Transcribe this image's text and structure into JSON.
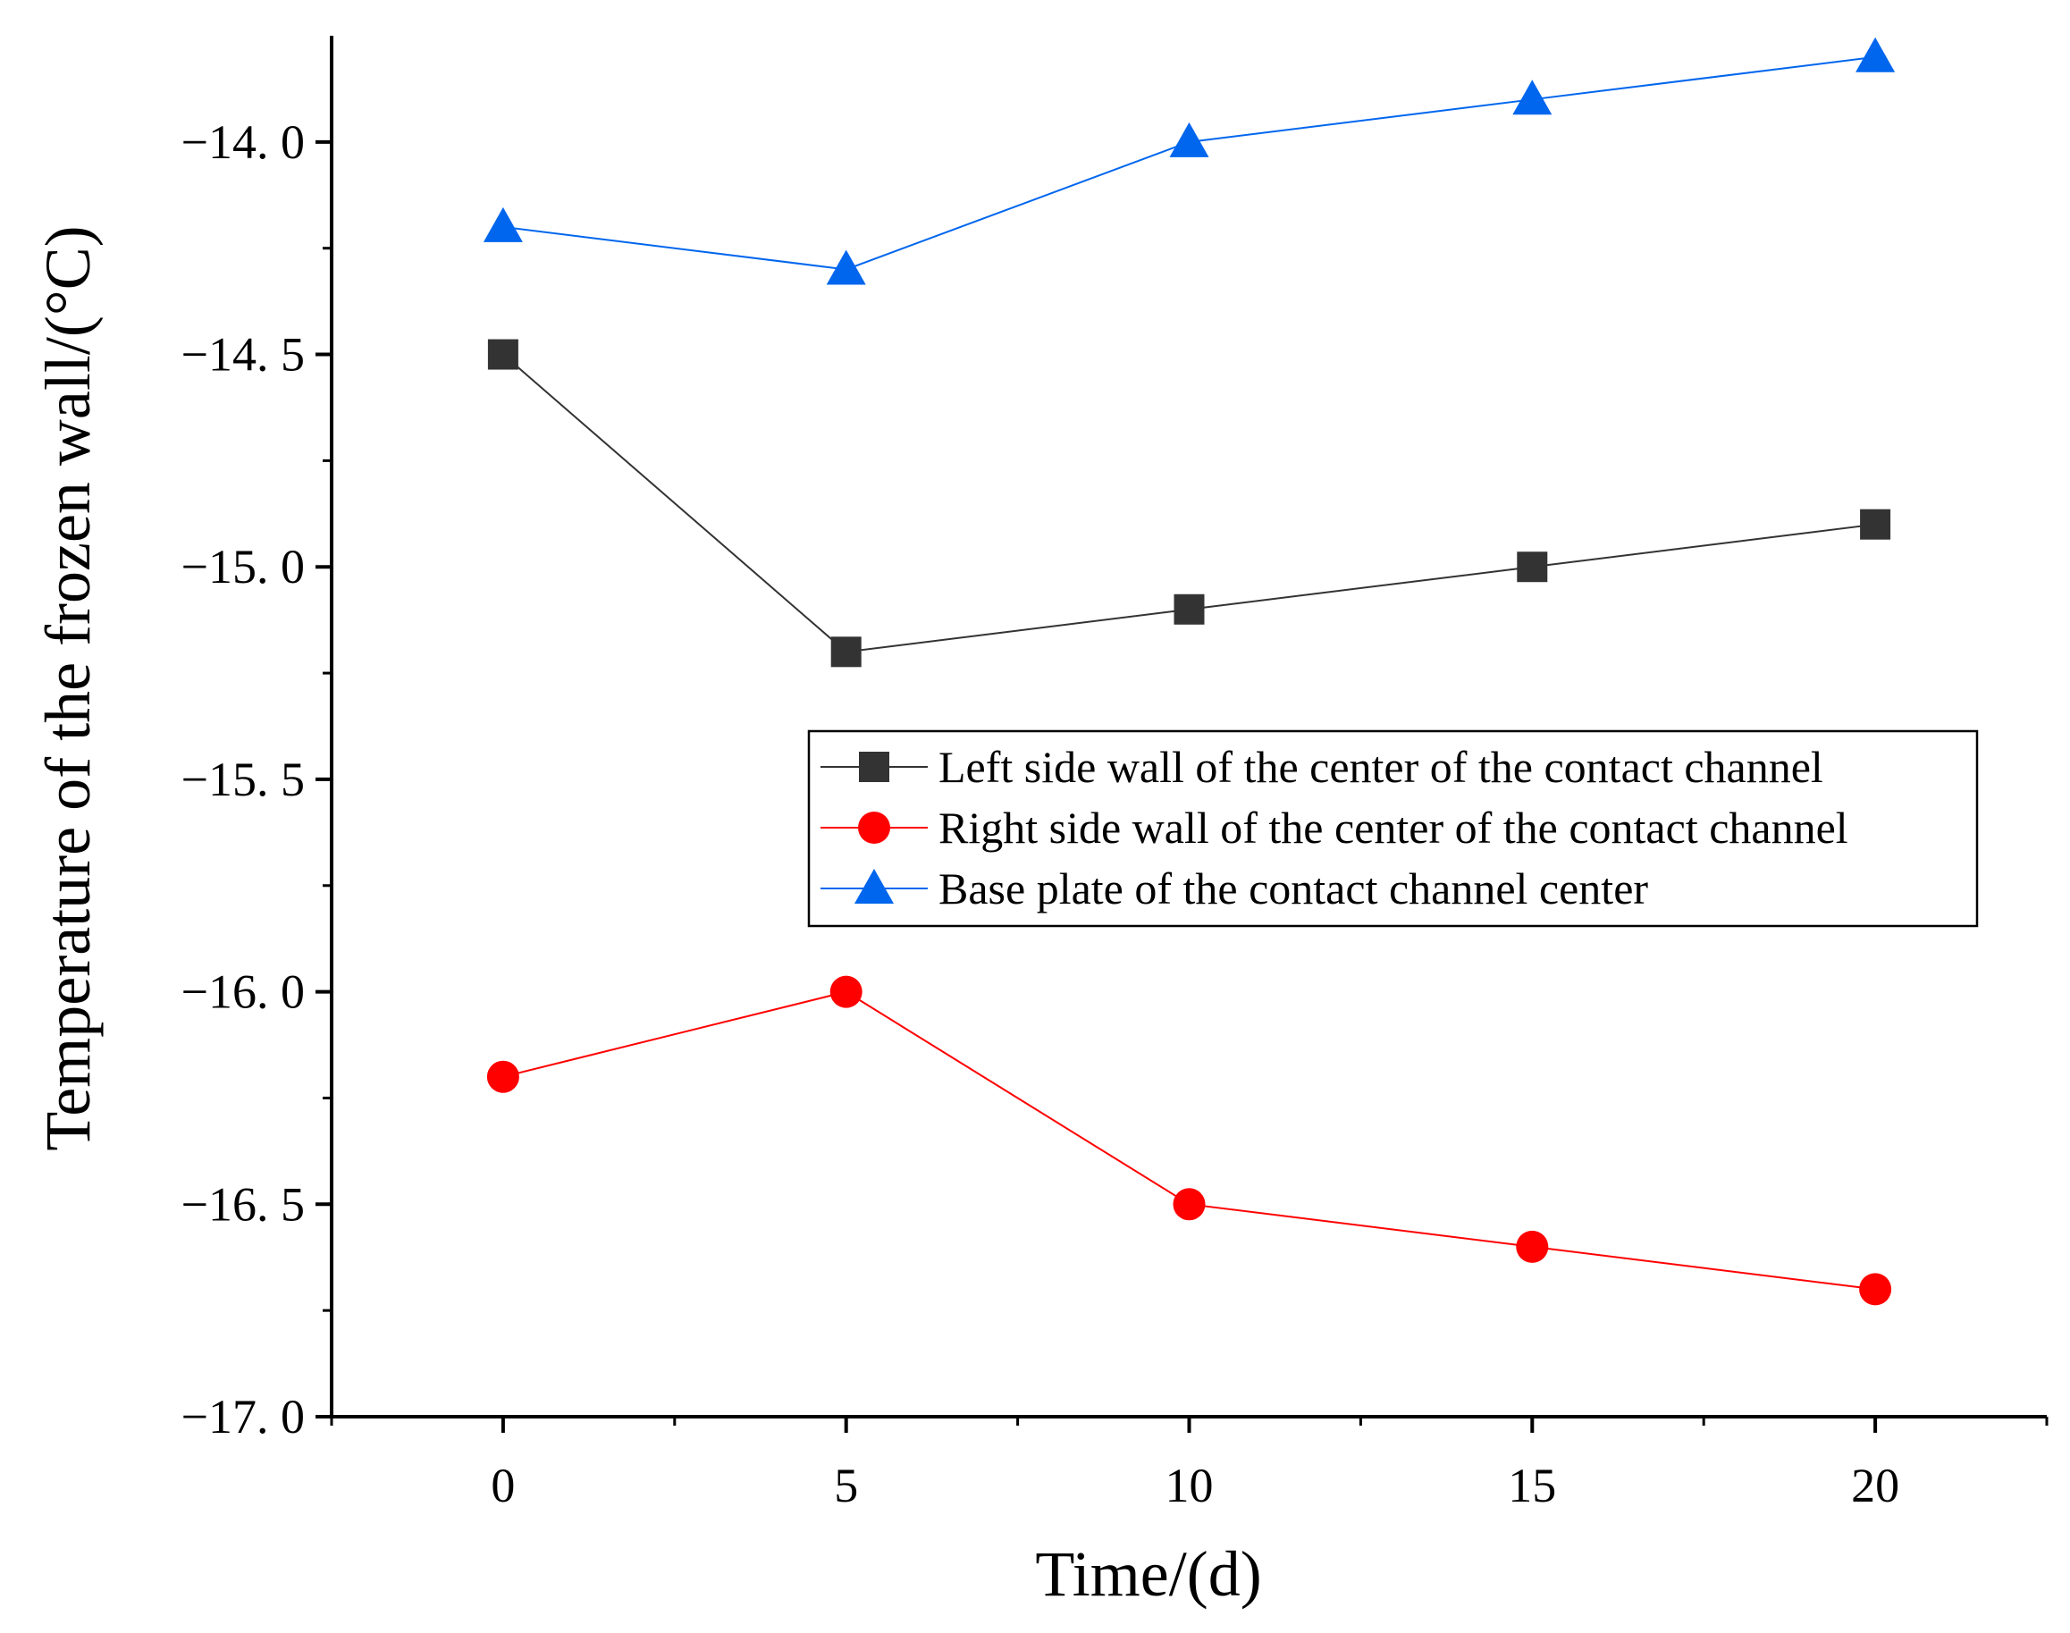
{
  "chart_data": {
    "type": "line",
    "title": "",
    "xlabel": "Time/(d)",
    "ylabel": "Temperature of the frozen wall/(°C)",
    "x": [
      0,
      5,
      10,
      15,
      20
    ],
    "xlim": [
      -2.5,
      22.5
    ],
    "ylim": [
      -17.0,
      -13.75
    ],
    "xticks": [
      0,
      5,
      10,
      15,
      20
    ],
    "xtick_labels": [
      "0",
      "5",
      "10",
      "15",
      "20"
    ],
    "yticks": [
      -17.0,
      -16.5,
      -16.0,
      -15.5,
      -15.0,
      -14.5,
      -14.0
    ],
    "ytick_labels": [
      "−17. 0",
      "−16. 5",
      "−16. 0",
      "−15. 5",
      "−15. 0",
      "−14. 5",
      "−14. 0"
    ],
    "grid": false,
    "legend_position": "center-right",
    "series": [
      {
        "name": "Left side wall of the center of the contact channel",
        "marker": "square",
        "color": "#333333",
        "values": [
          -14.5,
          -15.2,
          -15.1,
          -15.0,
          -14.9
        ]
      },
      {
        "name": "Right side wall of the center of the contact channel",
        "marker": "circle",
        "color": "#ff0000",
        "values": [
          -16.2,
          -16.0,
          -16.5,
          -16.6,
          -16.7
        ]
      },
      {
        "name": "Base plate of the contact channel center",
        "marker": "triangle",
        "color": "#0066ee",
        "values": [
          -14.2,
          -14.3,
          -14.0,
          -13.9,
          -13.8
        ]
      }
    ]
  }
}
